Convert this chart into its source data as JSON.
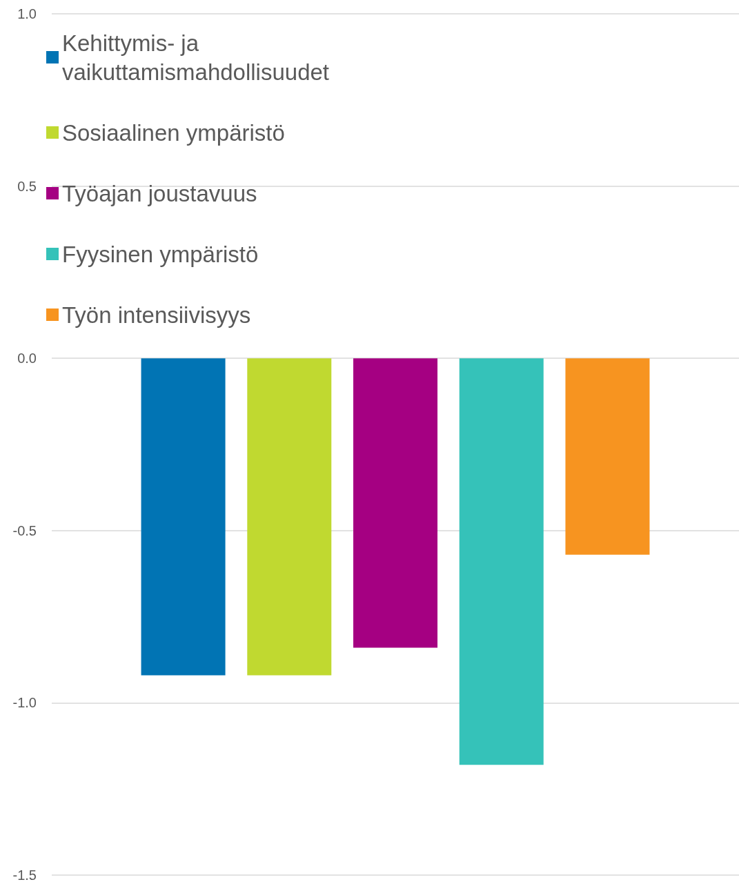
{
  "chart_data": {
    "type": "bar",
    "categories": [
      null
    ],
    "series": [
      {
        "name": "Kehittymis- ja vaikuttamismahdollisuudet",
        "color": "#0174b4",
        "values": [
          -0.92
        ]
      },
      {
        "name": "Sosiaalinen ympäristö",
        "color": "#c0d930",
        "values": [
          -0.92
        ]
      },
      {
        "name": "Työajan joustavuus",
        "color": "#a50082",
        "values": [
          -0.84
        ]
      },
      {
        "name": "Fyysinen ympäristö",
        "color": "#35c2b9",
        "values": [
          -1.18
        ]
      },
      {
        "name": "Työn intensiivisyys",
        "color": "#f79420",
        "values": [
          -0.57
        ]
      }
    ],
    "ylim": [
      -1.5,
      1.0
    ],
    "yticks": [
      {
        "value": -1.5,
        "label": "-1.5"
      },
      {
        "value": -1.0,
        "label": "-1.0"
      },
      {
        "value": -0.5,
        "label": "-0.5"
      },
      {
        "value": 0,
        "label": "0.0"
      },
      {
        "value": 0.5,
        "label": "0.5"
      },
      {
        "value": 1.0,
        "label": "1.0"
      }
    ],
    "grid": true,
    "legend": "top left"
  }
}
